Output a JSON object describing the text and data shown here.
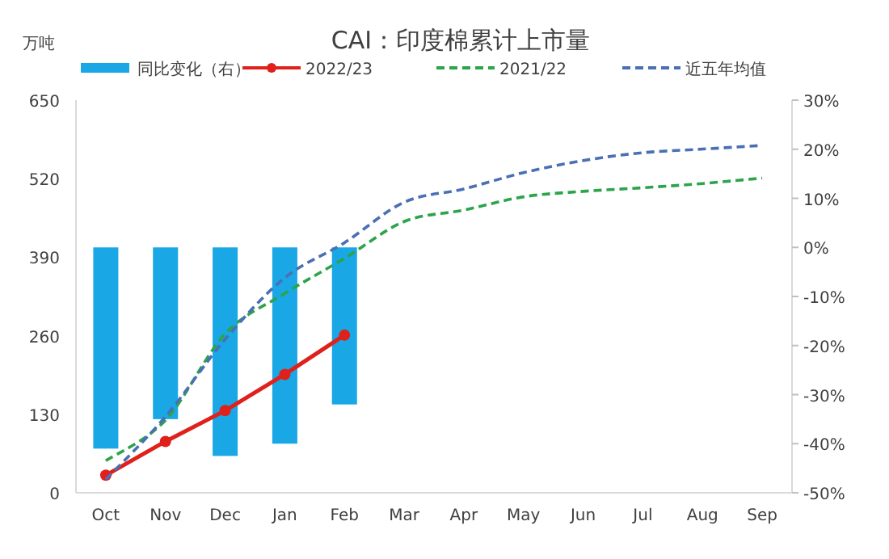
{
  "chart_data": {
    "type": "line",
    "title": "CAI：印度棉累计上市量",
    "ylabel": "万吨",
    "categories": [
      "Oct",
      "Nov",
      "Dec",
      "Jan",
      "Feb",
      "Mar",
      "Apr",
      "May",
      "Jun",
      "Jul",
      "Aug",
      "Sep"
    ],
    "series": [
      {
        "name": "同比变化（右）",
        "type": "bar",
        "axis": "y2",
        "color": "#1aa7e6",
        "values": [
          -41,
          -35,
          -42.5,
          -40,
          -32,
          null,
          null,
          null,
          null,
          null,
          null,
          null
        ]
      },
      {
        "name": "2022/23",
        "color": "#e0201b",
        "marker": "circle",
        "line_style": "solid",
        "values": [
          29,
          85,
          136,
          196,
          261,
          null,
          null,
          null,
          null,
          null,
          null,
          null
        ]
      },
      {
        "name": "2021/22",
        "color": "#2ca44a",
        "line_style": "dashed",
        "values": [
          53,
          120,
          263,
          330,
          388,
          449,
          468,
          490,
          499,
          505,
          512,
          521
        ]
      },
      {
        "name": "近五年均值",
        "color": "#4a6fb5",
        "line_style": "dashed",
        "values": [
          22,
          126,
          254,
          356,
          414,
          481,
          503,
          530,
          550,
          563,
          569,
          575
        ]
      }
    ],
    "ylim": [
      0,
      650
    ],
    "yticks": [
      0,
      130,
      260,
      390,
      520,
      650
    ],
    "y2lim": [
      -50,
      30
    ],
    "y2ticks": [
      {
        "value": -50,
        "label": "-50%"
      },
      {
        "value": -40,
        "label": "-40%"
      },
      {
        "value": -30,
        "label": "-30%"
      },
      {
        "value": -20,
        "label": "-20%"
      },
      {
        "value": -10,
        "label": "-10%"
      },
      {
        "value": 0,
        "label": "0%"
      },
      {
        "value": 10,
        "label": "10%"
      },
      {
        "value": 20,
        "label": "20%"
      },
      {
        "value": 30,
        "label": "30%"
      }
    ],
    "legend": "top",
    "grid": false
  }
}
